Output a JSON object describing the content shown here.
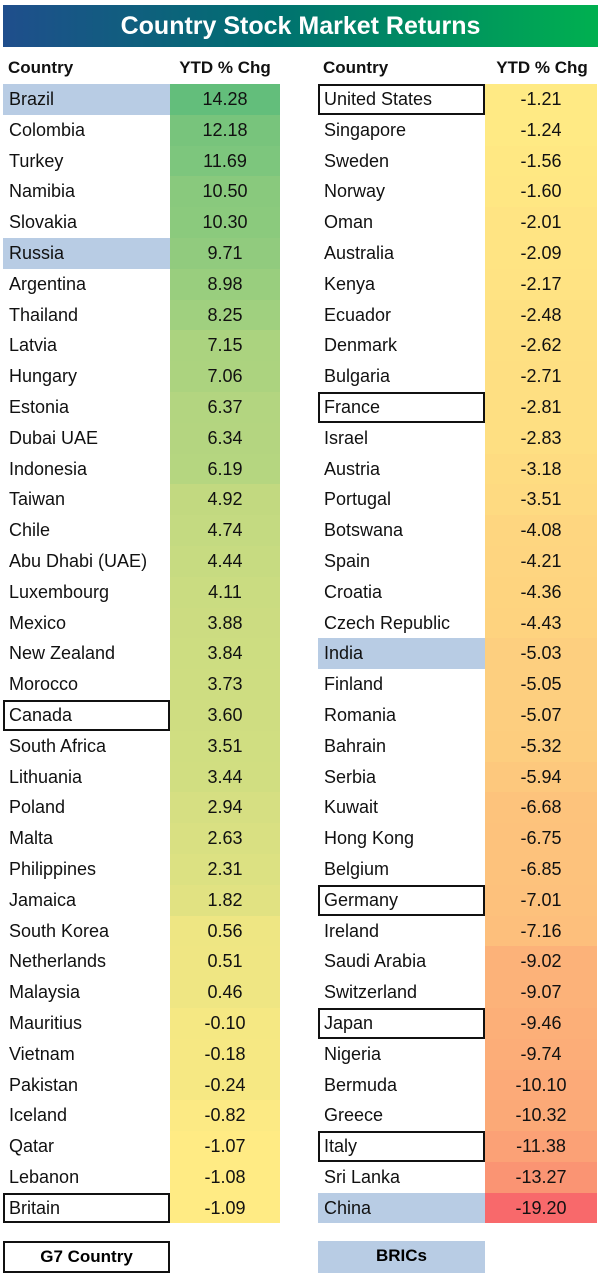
{
  "chart_data": {
    "type": "table",
    "title": "Country Stock Market Returns",
    "columns": [
      "Country",
      "YTD % Chg"
    ],
    "color_scale": {
      "min_color": "#F8696B",
      "mid_color": "#FFEB84",
      "max_color": "#63BE7B",
      "mid_value": -1.1
    },
    "group_colors": {
      "bric_bg": "#B8CCE4",
      "g7_border": "#111111"
    },
    "left": [
      [
        "Brazil",
        14.28,
        "bric"
      ],
      [
        "Colombia",
        12.18,
        ""
      ],
      [
        "Turkey",
        11.69,
        ""
      ],
      [
        "Namibia",
        10.5,
        ""
      ],
      [
        "Slovakia",
        10.3,
        ""
      ],
      [
        "Russia",
        9.71,
        "bric"
      ],
      [
        "Argentina",
        8.98,
        ""
      ],
      [
        "Thailand",
        8.25,
        ""
      ],
      [
        "Latvia",
        7.15,
        ""
      ],
      [
        "Hungary",
        7.06,
        ""
      ],
      [
        "Estonia",
        6.37,
        ""
      ],
      [
        "Dubai UAE",
        6.34,
        ""
      ],
      [
        "Indonesia",
        6.19,
        ""
      ],
      [
        "Taiwan",
        4.92,
        ""
      ],
      [
        "Chile",
        4.74,
        ""
      ],
      [
        "Abu Dhabi (UAE)",
        4.44,
        ""
      ],
      [
        "Luxembourg",
        4.11,
        ""
      ],
      [
        "Mexico",
        3.88,
        ""
      ],
      [
        "New Zealand",
        3.84,
        ""
      ],
      [
        "Morocco",
        3.73,
        ""
      ],
      [
        "Canada",
        3.6,
        "g7"
      ],
      [
        "South Africa",
        3.51,
        ""
      ],
      [
        "Lithuania",
        3.44,
        ""
      ],
      [
        "Poland",
        2.94,
        ""
      ],
      [
        "Malta",
        2.63,
        ""
      ],
      [
        "Philippines",
        2.31,
        ""
      ],
      [
        "Jamaica",
        1.82,
        ""
      ],
      [
        "South Korea",
        0.56,
        ""
      ],
      [
        "Netherlands",
        0.51,
        ""
      ],
      [
        "Malaysia",
        0.46,
        ""
      ],
      [
        "Mauritius",
        -0.1,
        ""
      ],
      [
        "Vietnam",
        -0.18,
        ""
      ],
      [
        "Pakistan",
        -0.24,
        ""
      ],
      [
        "Iceland",
        -0.82,
        ""
      ],
      [
        "Qatar",
        -1.07,
        ""
      ],
      [
        "Lebanon",
        -1.08,
        ""
      ],
      [
        "Britain",
        -1.09,
        "g7"
      ]
    ],
    "right": [
      [
        "United States",
        -1.21,
        "g7"
      ],
      [
        "Singapore",
        -1.24,
        ""
      ],
      [
        "Sweden",
        -1.56,
        ""
      ],
      [
        "Norway",
        -1.6,
        ""
      ],
      [
        "Oman",
        -2.01,
        ""
      ],
      [
        "Australia",
        -2.09,
        ""
      ],
      [
        "Kenya",
        -2.17,
        ""
      ],
      [
        "Ecuador",
        -2.48,
        ""
      ],
      [
        "Denmark",
        -2.62,
        ""
      ],
      [
        "Bulgaria",
        -2.71,
        ""
      ],
      [
        "France",
        -2.81,
        "g7"
      ],
      [
        "Israel",
        -2.83,
        ""
      ],
      [
        "Austria",
        -3.18,
        ""
      ],
      [
        "Portugal",
        -3.51,
        ""
      ],
      [
        "Botswana",
        -4.08,
        ""
      ],
      [
        "Spain",
        -4.21,
        ""
      ],
      [
        "Croatia",
        -4.36,
        ""
      ],
      [
        "Czech Republic",
        -4.43,
        ""
      ],
      [
        "India",
        -5.03,
        "bric"
      ],
      [
        "Finland",
        -5.05,
        ""
      ],
      [
        "Romania",
        -5.07,
        ""
      ],
      [
        "Bahrain",
        -5.32,
        ""
      ],
      [
        "Serbia",
        -5.94,
        ""
      ],
      [
        "Kuwait",
        -6.68,
        ""
      ],
      [
        "Hong Kong",
        -6.75,
        ""
      ],
      [
        "Belgium",
        -6.85,
        ""
      ],
      [
        "Germany",
        -7.01,
        "g7"
      ],
      [
        "Ireland",
        -7.16,
        ""
      ],
      [
        "Saudi Arabia",
        -9.02,
        ""
      ],
      [
        "Switzerland",
        -9.07,
        ""
      ],
      [
        "Japan",
        -9.46,
        "g7"
      ],
      [
        "Nigeria",
        -9.74,
        ""
      ],
      [
        "Bermuda",
        -10.1,
        ""
      ],
      [
        "Greece",
        -10.32,
        ""
      ],
      [
        "Italy",
        -11.38,
        "g7"
      ],
      [
        "Sri Lanka",
        -13.27,
        ""
      ],
      [
        "China",
        -19.2,
        "bric"
      ]
    ],
    "legend": {
      "g7": "G7 Country",
      "bric": "BRICs"
    }
  }
}
